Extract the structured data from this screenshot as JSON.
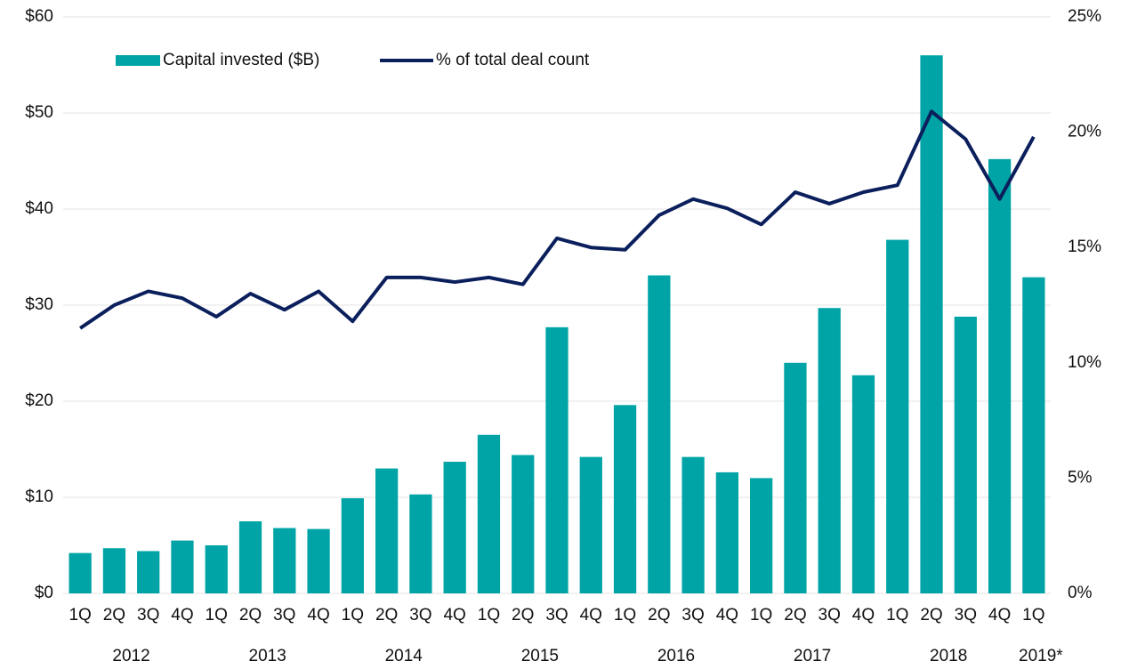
{
  "chart_data": {
    "type": "bar_line",
    "categories": [
      "1Q",
      "2Q",
      "3Q",
      "4Q",
      "1Q",
      "2Q",
      "3Q",
      "4Q",
      "1Q",
      "2Q",
      "3Q",
      "4Q",
      "1Q",
      "2Q",
      "3Q",
      "4Q",
      "1Q",
      "2Q",
      "3Q",
      "4Q",
      "1Q",
      "2Q",
      "3Q",
      "4Q",
      "1Q",
      "2Q",
      "3Q",
      "4Q",
      "1Q"
    ],
    "year_labels": [
      "2012",
      "2013",
      "2014",
      "2015",
      "2016",
      "2017",
      "2018",
      "2019*"
    ],
    "series": [
      {
        "name": "Capital invested ($B)",
        "color": "#00a4a6",
        "type": "bar",
        "values": [
          4.2,
          4.7,
          4.4,
          5.5,
          5.0,
          7.5,
          6.8,
          6.7,
          9.9,
          13.0,
          10.3,
          13.7,
          16.5,
          14.4,
          27.7,
          14.2,
          19.6,
          33.1,
          14.2,
          12.6,
          12.0,
          24.0,
          29.7,
          22.7,
          36.8,
          56.0,
          28.8,
          45.2,
          32.9
        ]
      },
      {
        "name": "% of total deal count",
        "color": "#0a1f5c",
        "type": "line",
        "axis": "y2",
        "values": [
          11.5,
          12.5,
          13.1,
          12.8,
          12.0,
          13.0,
          12.3,
          13.1,
          11.8,
          13.7,
          13.7,
          13.5,
          13.7,
          13.4,
          15.4,
          15.0,
          14.9,
          16.4,
          17.1,
          16.7,
          16.0,
          17.4,
          16.9,
          17.4,
          17.7,
          20.9,
          19.7,
          17.1,
          19.8
        ]
      }
    ],
    "ylim": [
      0,
      60
    ],
    "yticks": [
      {
        "value": 0,
        "label": "$0"
      },
      {
        "value": 10,
        "label": "$10"
      },
      {
        "value": 20,
        "label": "$20"
      },
      {
        "value": 30,
        "label": "$30"
      },
      {
        "value": 40,
        "label": "$40"
      },
      {
        "value": 50,
        "label": "$50"
      },
      {
        "value": 60,
        "label": "$60"
      }
    ],
    "y2lim": [
      0,
      25
    ],
    "y2ticks": [
      {
        "value": 0,
        "label": "0%"
      },
      {
        "value": 5,
        "label": "5%"
      },
      {
        "value": 10,
        "label": "10%"
      },
      {
        "value": 15,
        "label": "15%"
      },
      {
        "value": 20,
        "label": "20%"
      },
      {
        "value": 25,
        "label": "25%"
      }
    ],
    "grid": true,
    "legend": "top-left"
  }
}
